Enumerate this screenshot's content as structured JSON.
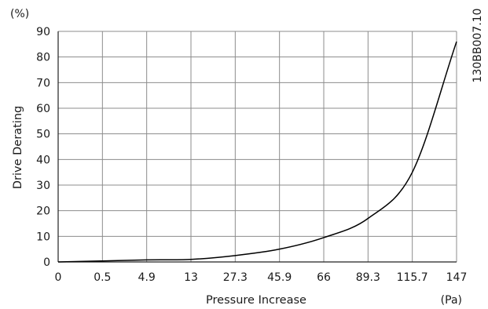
{
  "chart_data": {
    "type": "line",
    "title": "",
    "xlabel": "Pressure Increase",
    "ylabel": "Drive Derating",
    "x_unit": "(Pa)",
    "y_unit": "(%)",
    "figure_id": "130BB007.10",
    "categories": [
      "0",
      "0.5",
      "4.9",
      "13",
      "27.3",
      "45.9",
      "66",
      "89.3",
      "115.7",
      "147"
    ],
    "y_ticks": [
      "0",
      "10",
      "20",
      "30",
      "40",
      "50",
      "60",
      "70",
      "80",
      "90"
    ],
    "ylim": [
      0,
      90
    ],
    "grid": true,
    "series": [
      {
        "color": "#000000",
        "points": [
          {
            "x": "0",
            "y": 0
          },
          {
            "x": "0.5",
            "y": 0.4
          },
          {
            "x": "4.9",
            "y": 0.8
          },
          {
            "x": "13",
            "y": 1
          },
          {
            "x": "27.3",
            "y": 2.5
          },
          {
            "x": "45.9",
            "y": 5
          },
          {
            "x": "66",
            "y": 9.5
          },
          {
            "x": "89.3",
            "y": 17
          },
          {
            "x": "115.7",
            "y": 35
          },
          {
            "x": "147",
            "y": 86
          }
        ]
      }
    ]
  }
}
